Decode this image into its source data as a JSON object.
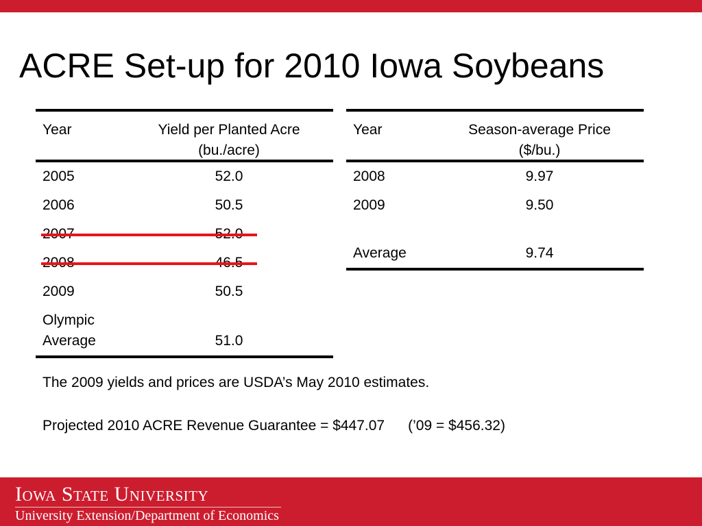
{
  "slide": {
    "title": "ACRE Set-up for 2010 Iowa Soybeans"
  },
  "yield_table": {
    "header": {
      "col1": "Year",
      "col2_line1": "Yield per Planted Acre",
      "col2_line2": "(bu./acre)"
    },
    "rows": [
      {
        "year": "2005",
        "value": "52.0",
        "struck": false
      },
      {
        "year": "2006",
        "value": "50.5",
        "struck": false
      },
      {
        "year": "2007",
        "value": "52.0",
        "struck": true
      },
      {
        "year": "2008",
        "value": "46.5",
        "struck": true
      },
      {
        "year": "2009",
        "value": "50.5",
        "struck": false
      }
    ],
    "summary": {
      "label_line1": "Olympic",
      "label_line2": "Average",
      "value": "51.0"
    }
  },
  "price_table": {
    "header": {
      "col1": "Year",
      "col2_line1": "Season-average Price",
      "col2_line2": "($/bu.)"
    },
    "rows": [
      {
        "year": "2008",
        "value": "9.97"
      },
      {
        "year": "2009",
        "value": "9.50"
      }
    ],
    "summary": {
      "label": "Average",
      "value": "9.74"
    }
  },
  "notes": {
    "line1": "The 2009 yields and prices are USDA’s May 2010 estimates.",
    "line2": "Projected 2010 ACRE Revenue Guarantee = $447.07",
    "line2_prior": "(’09 = $456.32)"
  },
  "footer": {
    "university": "Iowa State University",
    "department": "University Extension/Department of Economics"
  },
  "colors": {
    "brand_red": "#cc1d2e",
    "strike_red": "#e8141a"
  }
}
